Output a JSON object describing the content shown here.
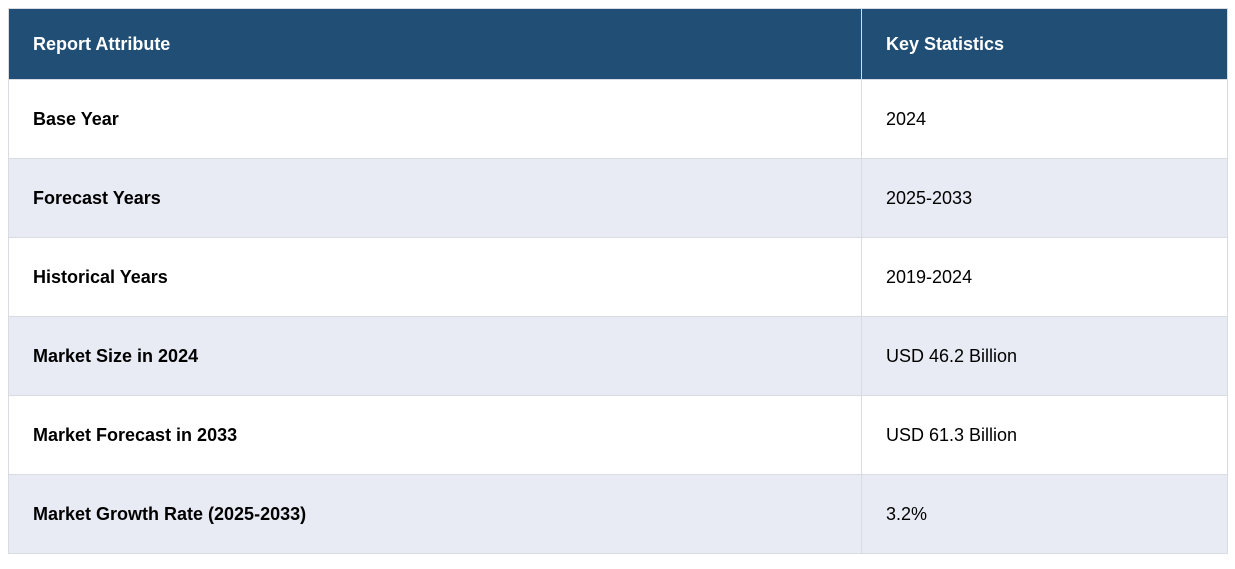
{
  "chart_data": {
    "type": "table",
    "columns": [
      "Report Attribute",
      "Key Statistics"
    ],
    "rows": [
      [
        "Base Year",
        "2024"
      ],
      [
        "Forecast Years",
        "2025-2033"
      ],
      [
        "Historical Years",
        "2019-2024"
      ],
      [
        "Market Size in 2024",
        "USD 46.2 Billion"
      ],
      [
        "Market Forecast in 2033",
        "USD 61.3 Billion"
      ],
      [
        "Market Growth Rate (2025-2033)",
        "3.2%"
      ]
    ]
  },
  "colors": {
    "header_background": "#204e74",
    "header_text": "#ffffff",
    "row_background": "#ffffff",
    "row_alt_background": "#e8eaf4",
    "cell_border": "#d8dbe1",
    "body_text": "#000000"
  }
}
